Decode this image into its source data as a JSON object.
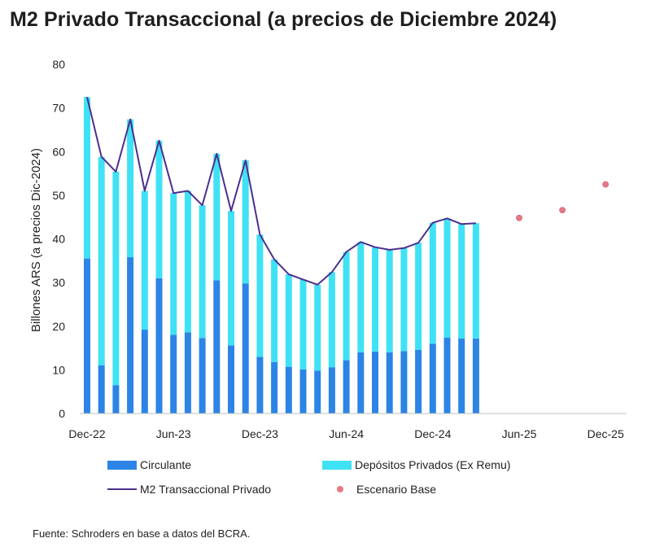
{
  "chart_data": {
    "type": "bar",
    "title": "M2 Privado Transaccional (a precios de Diciembre 2024)",
    "ylabel": "Billones ARS (a precios Dic-2024)",
    "xlabel": "",
    "ylim": [
      0,
      80
    ],
    "yticks": [
      "0",
      "10",
      "20",
      "30",
      "40",
      "50",
      "60",
      "70",
      "80"
    ],
    "xtick_labels": [
      "Dec-22",
      "Jun-23",
      "Dec-23",
      "Jun-24",
      "Dec-24",
      "Jun-25",
      "Dec-25"
    ],
    "stacked": true,
    "series": [
      {
        "name": "Circulante",
        "color": "#2b84e6",
        "values": [
          35.5,
          11,
          6.5,
          35.8,
          19.2,
          31,
          18,
          18.6,
          17.3,
          30.5,
          15.6,
          29.8,
          13,
          11.8,
          10.7,
          10.1,
          9.8,
          10.6,
          12.2,
          14,
          14.2,
          14,
          14.3,
          14.6,
          16,
          17.4,
          17.2,
          17.2
        ]
      },
      {
        "name": "Depósitos Privados (Ex Remu)",
        "color": "#3fe2f5",
        "values": [
          37,
          47.8,
          48.9,
          31.6,
          31.8,
          31.5,
          32.5,
          32.4,
          30.4,
          29,
          30.8,
          28.2,
          28,
          23.5,
          21.2,
          20.6,
          19.7,
          21.8,
          24.8,
          25.3,
          23.9,
          23.5,
          23.6,
          24.5,
          27.7,
          27.3,
          26.2,
          26.4
        ]
      },
      {
        "name": "M2 Transaccional Privado",
        "color": "#4b2f8f",
        "kind": "line",
        "values": [
          72.5,
          58.8,
          55.4,
          67.4,
          51,
          62.5,
          50.5,
          51,
          47.7,
          59.5,
          46.4,
          58,
          41,
          35.3,
          31.9,
          30.7,
          29.5,
          32.4,
          37,
          39.3,
          38.1,
          37.5,
          37.9,
          39.1,
          43.7,
          44.7,
          43.4,
          43.6
        ]
      },
      {
        "name": "Escenario Base",
        "color": "#e57a86",
        "kind": "scatter",
        "points": [
          {
            "month_index": 30,
            "value": 44.8
          },
          {
            "month_index": 33,
            "value": 46.6
          },
          {
            "month_index": 36,
            "value": 52.5
          }
        ]
      }
    ]
  },
  "legend": {
    "circulante": "Circulante",
    "depositos": "Depósitos Privados (Ex Remu)",
    "m2": "M2 Transaccional Privado",
    "escenario": "Escenario Base"
  },
  "colors": {
    "circulante": "#2b84e6",
    "depositos": "#3fe2f5",
    "m2": "#4b2f8f",
    "escenario": "#e57a86"
  },
  "source": "Fuente: Schroders en base a datos del BCRA."
}
